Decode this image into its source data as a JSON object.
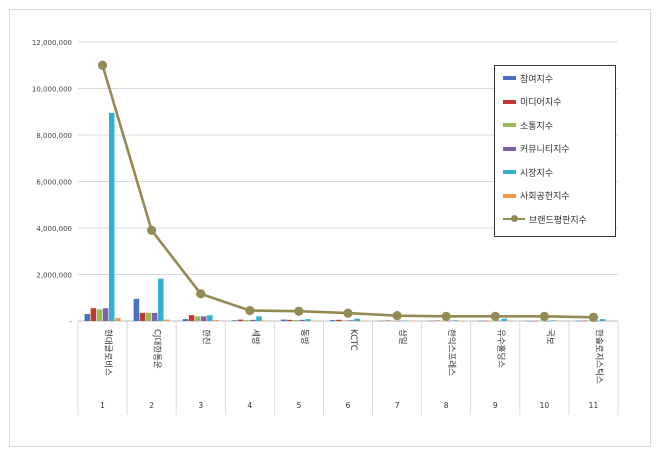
{
  "chart_data": {
    "type": "bar",
    "categories": [
      "1",
      "2",
      "3",
      "4",
      "5",
      "6",
      "7",
      "8",
      "9",
      "10",
      "11"
    ],
    "category_names": [
      "현대글로비스",
      "CJ대한통운",
      "한진",
      "세방",
      "동방",
      "KCTC",
      "삼일",
      "한익스프레스",
      "유수홀딩스",
      "국보",
      "한솔로지스틱스"
    ],
    "ylim": [
      0,
      12000000
    ],
    "yticks": [
      0,
      2000000,
      4000000,
      6000000,
      8000000,
      10000000,
      12000000
    ],
    "ytick_labels": [
      "-",
      "2,000,000",
      "4,000,000",
      "6,000,000",
      "8,000,000",
      "10,000,000",
      "12,000,000"
    ],
    "grid": true,
    "legend_position": "top-right",
    "series": [
      {
        "name": "참여지수",
        "color": "#4472c4",
        "kind": "bar",
        "values": [
          300000,
          950000,
          80000,
          30000,
          60000,
          40000,
          10000,
          10000,
          10000,
          5000,
          10000
        ]
      },
      {
        "name": "미디어지수",
        "color": "#c0392b",
        "kind": "bar",
        "values": [
          550000,
          350000,
          250000,
          60000,
          50000,
          50000,
          20000,
          20000,
          15000,
          10000,
          15000
        ]
      },
      {
        "name": "소통지수",
        "color": "#9bbb59",
        "kind": "bar",
        "values": [
          500000,
          350000,
          200000,
          40000,
          40000,
          30000,
          10000,
          10000,
          10000,
          10000,
          10000
        ]
      },
      {
        "name": "커뮤니티지수",
        "color": "#7f60a8",
        "kind": "bar",
        "values": [
          550000,
          350000,
          200000,
          50000,
          50000,
          30000,
          10000,
          10000,
          10000,
          5000,
          10000
        ]
      },
      {
        "name": "시장지수",
        "color": "#31b0d0",
        "kind": "bar",
        "values": [
          8950000,
          1820000,
          250000,
          200000,
          80000,
          100000,
          20000,
          30000,
          100000,
          30000,
          80000
        ]
      },
      {
        "name": "사회공헌지수",
        "color": "#f79646",
        "kind": "bar",
        "values": [
          120000,
          60000,
          40000,
          10000,
          10000,
          10000,
          5000,
          5000,
          5000,
          5000,
          5000
        ]
      },
      {
        "name": "브랜드평판지수",
        "color": "#948a54",
        "kind": "line",
        "values": [
          11000000,
          3900000,
          1170000,
          450000,
          420000,
          340000,
          230000,
          200000,
          200000,
          200000,
          160000
        ]
      }
    ]
  }
}
